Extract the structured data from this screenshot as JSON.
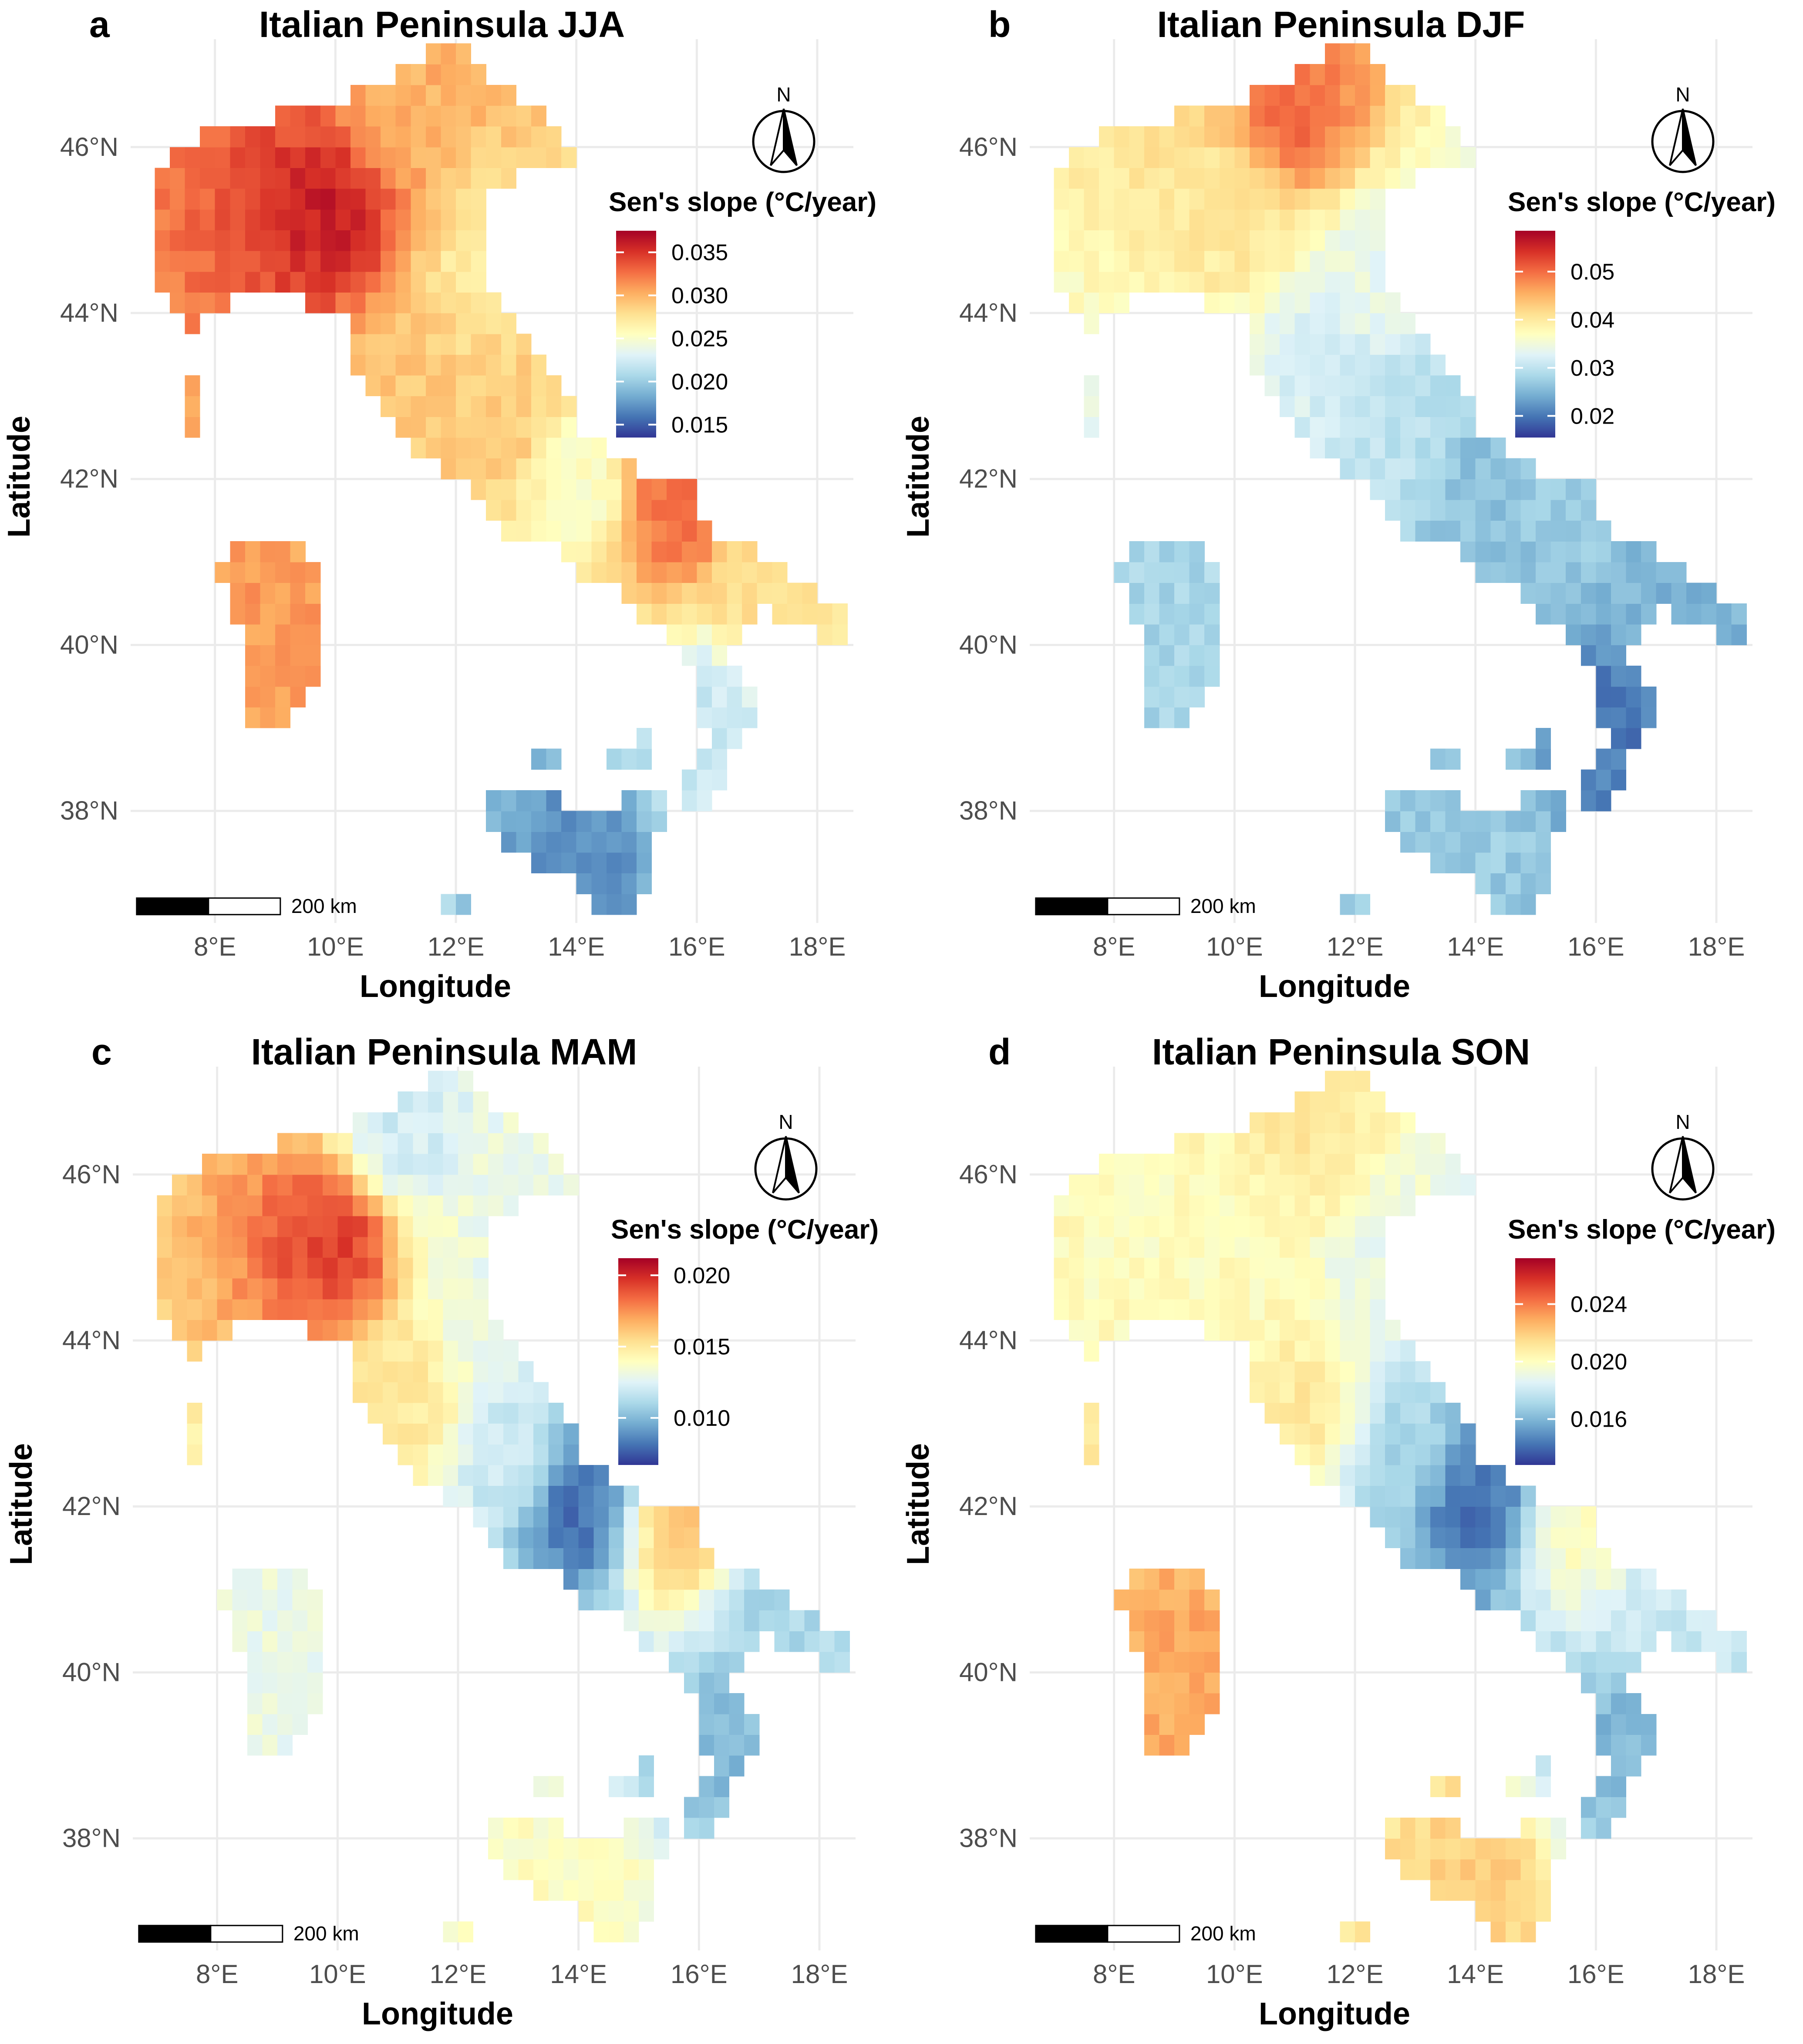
{
  "figure": {
    "panels": [
      {
        "letter": "a",
        "title": "Italian Peninsula JJA",
        "legend": {
          "title": "Sen's slope (°C/year)",
          "ticks": [
            {
              "value": 0.035,
              "label": "0.035"
            },
            {
              "value": 0.03,
              "label": "0.030"
            },
            {
              "value": 0.025,
              "label": "0.025"
            },
            {
              "value": 0.02,
              "label": "0.020"
            },
            {
              "value": 0.015,
              "label": "0.015"
            }
          ],
          "range": [
            0.0135,
            0.0375
          ]
        },
        "spatial_pattern": "warming strongest in the northern Po Valley (~0.035), weakest in Calabria/Sicily (~0.015)",
        "field": {
          "Po": 0.036,
          "Alps": 0.03,
          "Apennines": 0.029,
          "Tyrrhenian": 0.029,
          "Adriatic": 0.027,
          "Apulia": 0.028,
          "Calabria": 0.022,
          "Sicily": 0.017,
          "Sardinia": 0.031,
          "Gargano": 0.033,
          "Abruzzo": 0.025
        }
      },
      {
        "letter": "b",
        "title": "Italian Peninsula DJF",
        "legend": {
          "title": "Sen's slope (°C/year)",
          "ticks": [
            {
              "value": 0.05,
              "label": "0.05"
            },
            {
              "value": 0.04,
              "label": "0.04"
            },
            {
              "value": 0.03,
              "label": "0.03"
            },
            {
              "value": 0.02,
              "label": "0.02"
            }
          ],
          "range": [
            0.0155,
            0.0585
          ]
        },
        "spatial_pattern": "warming strongest in the central Alps (~0.055), weakest in southern Italy (~0.02)",
        "field": {
          "Po": 0.04,
          "Alps": 0.05,
          "Apennines": 0.03,
          "Tyrrhenian": 0.032,
          "Adriatic": 0.034,
          "Apulia": 0.025,
          "Calabria": 0.02,
          "Sicily": 0.027,
          "Sardinia": 0.028,
          "Gargano": 0.027,
          "Abruzzo": 0.026
        }
      },
      {
        "letter": "c",
        "title": "Italian Peninsula MAM",
        "legend": {
          "title": "Sen's slope (°C/year)",
          "ticks": [
            {
              "value": 0.02,
              "label": "0.020"
            },
            {
              "value": 0.015,
              "label": "0.015"
            },
            {
              "value": 0.01,
              "label": "0.010"
            }
          ],
          "range": [
            0.0067,
            0.0212
          ]
        },
        "spatial_pattern": "warming strongest in the Po Valley (~0.020), weakest along the central Apennines (~0.008)",
        "field": {
          "Po": 0.0195,
          "Alps": 0.012,
          "Apennines": 0.012,
          "Tyrrhenian": 0.015,
          "Adriatic": 0.013,
          "Apulia": 0.011,
          "Calabria": 0.01,
          "Sicily": 0.014,
          "Sardinia": 0.013,
          "Gargano": 0.016,
          "Abruzzo": 0.008
        }
      },
      {
        "letter": "d",
        "title": "Italian Peninsula SON",
        "legend": {
          "title": "Sen's slope (°C/year)",
          "ticks": [
            {
              "value": 0.024,
              "label": "0.024"
            },
            {
              "value": 0.02,
              "label": "0.020"
            },
            {
              "value": 0.016,
              "label": "0.016"
            }
          ],
          "range": [
            0.0128,
            0.0272
          ]
        },
        "spatial_pattern": "warming strongest in the central Alps and Sardinia/Sicily (~0.024), weakest in the central Apennines (~0.014)",
        "field": {
          "Po": 0.02,
          "Alps": 0.021,
          "Apennines": 0.017,
          "Tyrrhenian": 0.021,
          "Adriatic": 0.019,
          "Apulia": 0.018,
          "Calabria": 0.016,
          "Sicily": 0.022,
          "Sardinia": 0.023,
          "Gargano": 0.02,
          "Abruzzo": 0.014
        }
      }
    ],
    "x_axis": {
      "label": "Longitude",
      "ticks": [
        {
          "value": 8,
          "label": "8°E"
        },
        {
          "value": 10,
          "label": "10°E"
        },
        {
          "value": 12,
          "label": "12°E"
        },
        {
          "value": 14,
          "label": "14°E"
        },
        {
          "value": 16,
          "label": "16°E"
        },
        {
          "value": 18,
          "label": "18°E"
        }
      ],
      "range": [
        6.6,
        18.6
      ]
    },
    "y_axis": {
      "label": "Latitude",
      "ticks": [
        {
          "value": 38,
          "label": "38°N"
        },
        {
          "value": 40,
          "label": "40°N"
        },
        {
          "value": 42,
          "label": "42°N"
        },
        {
          "value": 44,
          "label": "44°N"
        },
        {
          "value": 46,
          "label": "46°N"
        }
      ],
      "range": [
        36.65,
        47.3
      ]
    },
    "grid_resolution_deg": 0.25,
    "scale_bar": {
      "label": "200 km",
      "length_km": 200
    },
    "north_arrow": {
      "label": "N",
      "icon": "north-arrow-icon"
    },
    "colormap": {
      "name": "RdYlBu (reversed)",
      "stops": [
        "#313695",
        "#4575b4",
        "#74add1",
        "#abd9e9",
        "#e0f3f8",
        "#ffffbf",
        "#fee090",
        "#fdae61",
        "#f46d43",
        "#d73027",
        "#a50026"
      ]
    },
    "grid": true
  }
}
